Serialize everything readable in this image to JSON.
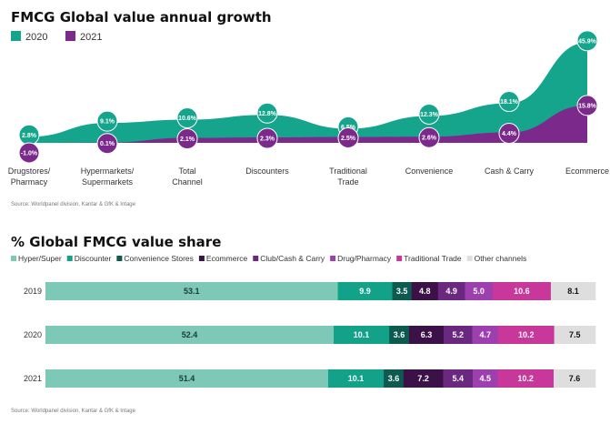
{
  "chart_data": [
    {
      "type": "area",
      "title": "FMCG Global value annual growth",
      "categories": [
        "Drugstores/\nPharmacy",
        "Hypermarkets/\nSupermarkets",
        "Total\nChannel",
        "Discounters",
        "Traditional\nTrade",
        "Convenience",
        "Cash & Carry",
        "Ecommerce"
      ],
      "series": [
        {
          "name": "2020",
          "color": "#15a58c",
          "values": [
            2.8,
            9.1,
            10.6,
            12.8,
            6.5,
            12.3,
            18.1,
            45.9
          ],
          "labels": [
            "2.8%",
            "9.1%",
            "10.6%",
            "12.8%",
            "6.5%",
            "12.3%",
            "18.1%",
            "45.9%"
          ]
        },
        {
          "name": "2021",
          "color": "#7b2a8c",
          "values": [
            -1.0,
            0.1,
            2.1,
            2.3,
            2.5,
            2.6,
            4.4,
            15.8
          ],
          "labels": [
            "-1.0%",
            "0.1%",
            "2.1%",
            "2.3%",
            "2.5%",
            "2.6%",
            "4.4%",
            "15.8%"
          ]
        }
      ],
      "source": "Source: Worldpanel division, Kantar & GfK & Intage"
    },
    {
      "type": "bar",
      "orientation": "horizontal-stacked",
      "title": "% Global FMCG value share",
      "categories": [
        "2019",
        "2020",
        "2021"
      ],
      "series": [
        {
          "name": "Hyper/Super",
          "color": "#7ec8b8",
          "text_color": "#1a3d36",
          "values": [
            53.1,
            52.4,
            51.4
          ]
        },
        {
          "name": "Discounter",
          "color": "#12a28a",
          "text_color": "#ffffff",
          "values": [
            9.9,
            10.1,
            10.1
          ]
        },
        {
          "name": "Convenience Stores",
          "color": "#0c5a50",
          "text_color": "#ffffff",
          "values": [
            3.5,
            3.6,
            3.6
          ]
        },
        {
          "name": "Ecommerce",
          "color": "#3b1148",
          "text_color": "#ffffff",
          "values": [
            4.8,
            6.3,
            7.2
          ]
        },
        {
          "name": "Club/Cash & Carry",
          "color": "#6a2880",
          "text_color": "#ffffff",
          "values": [
            4.9,
            5.2,
            5.4
          ]
        },
        {
          "name": "Drug/Pharmacy",
          "color": "#9d3fae",
          "text_color": "#ffffff",
          "values": [
            5.0,
            4.7,
            4.5
          ]
        },
        {
          "name": "Traditional Trade",
          "color": "#c8379a",
          "text_color": "#ffffff",
          "values": [
            10.6,
            10.2,
            10.2
          ]
        },
        {
          "name": "Other channels",
          "color": "#dedede",
          "text_color": "#111111",
          "values": [
            8.1,
            7.5,
            7.6
          ]
        }
      ],
      "source": "Source: Worldpanel division, Kantar & GfK & Intage"
    }
  ]
}
